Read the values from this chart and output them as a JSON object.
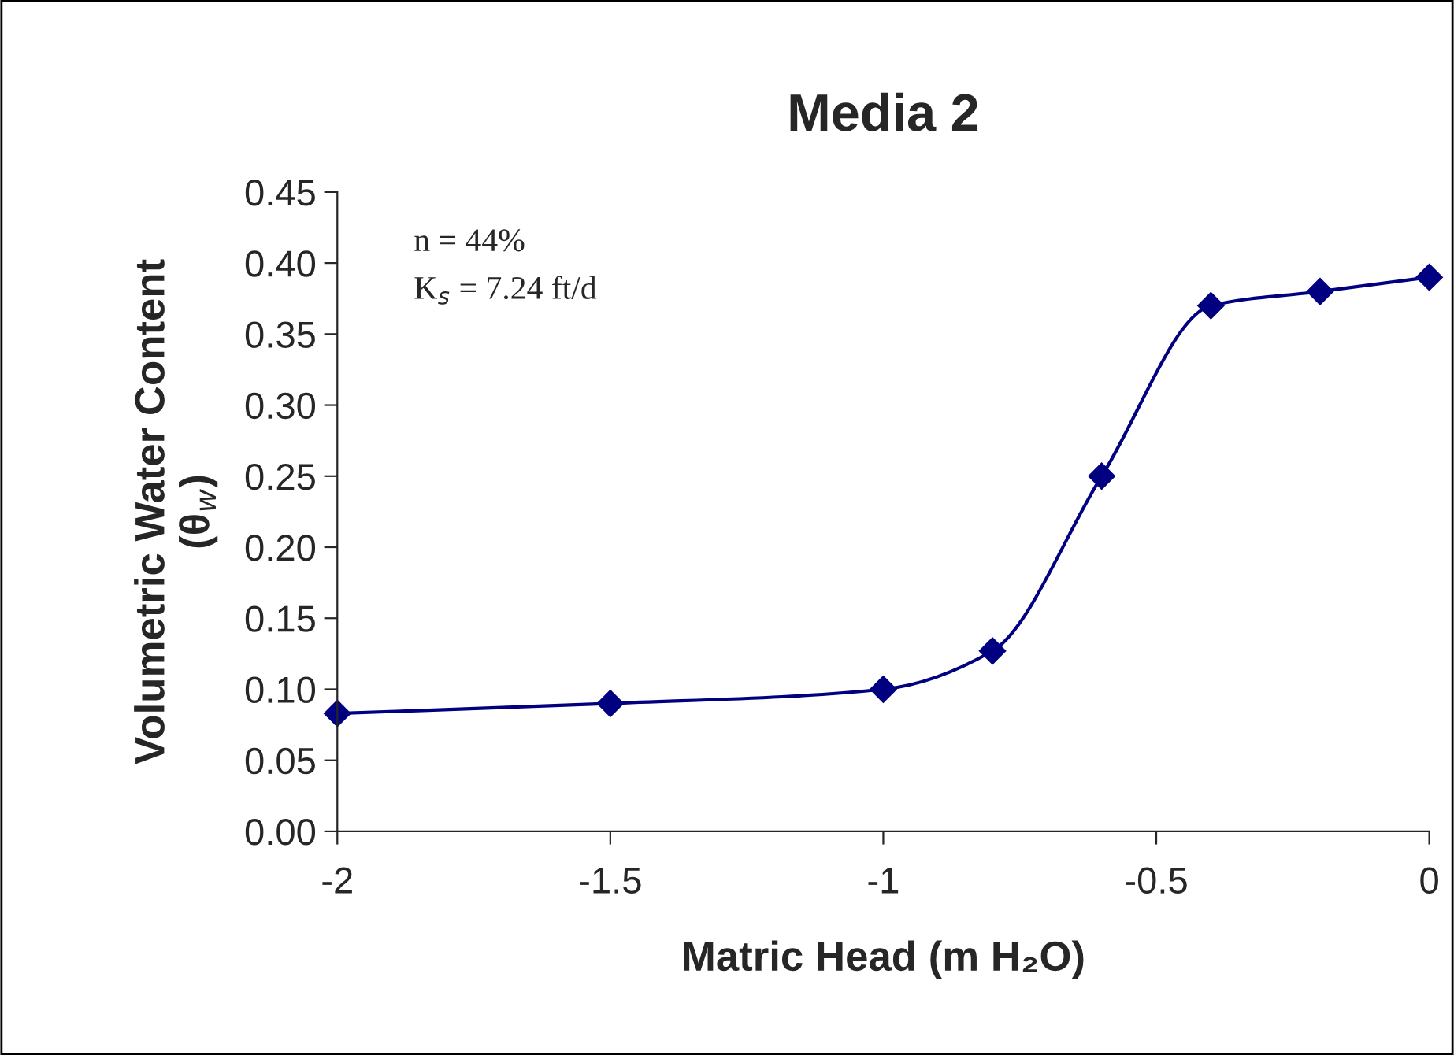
{
  "chart_data": {
    "type": "line",
    "title": "Media 2",
    "xlabel": "Matric Head (m H₂O)",
    "ylabel": "Volumetric Water Content\n(θ$_{w}$)",
    "x": [
      -2,
      -1.5,
      -1,
      -0.8,
      -0.6,
      -0.4,
      -0.2,
      0
    ],
    "series": [
      {
        "color": "#000080",
        "values": [
          0.083,
          0.09,
          0.1,
          0.127,
          0.25,
          0.37,
          0.38,
          0.39
        ]
      }
    ],
    "xlim": [
      -2,
      0
    ],
    "xticks": [
      -2,
      -1.5,
      -1,
      -0.5,
      0
    ],
    "ylim": [
      0,
      0.45
    ],
    "yticks": [
      {
        "value": 0,
        "label": "0.00"
      },
      {
        "value": 0.05,
        "label": "0.05"
      },
      {
        "value": 0.1,
        "label": "0.10"
      },
      {
        "value": 0.15,
        "label": "0.15"
      },
      {
        "value": 0.2,
        "label": "0.20"
      },
      {
        "value": 0.25,
        "label": "0.25"
      },
      {
        "value": 0.3,
        "label": "0.30"
      },
      {
        "value": 0.35,
        "label": "0.35"
      },
      {
        "value": 0.4,
        "label": "0.40"
      },
      {
        "value": 0.45,
        "label": "0.45"
      }
    ],
    "annotations": [
      "n = 44%",
      "K$_{s}$ = 7.24 ft/d"
    ],
    "marker": "diamond",
    "line_style": "solid",
    "grid": false,
    "legend": false
  }
}
